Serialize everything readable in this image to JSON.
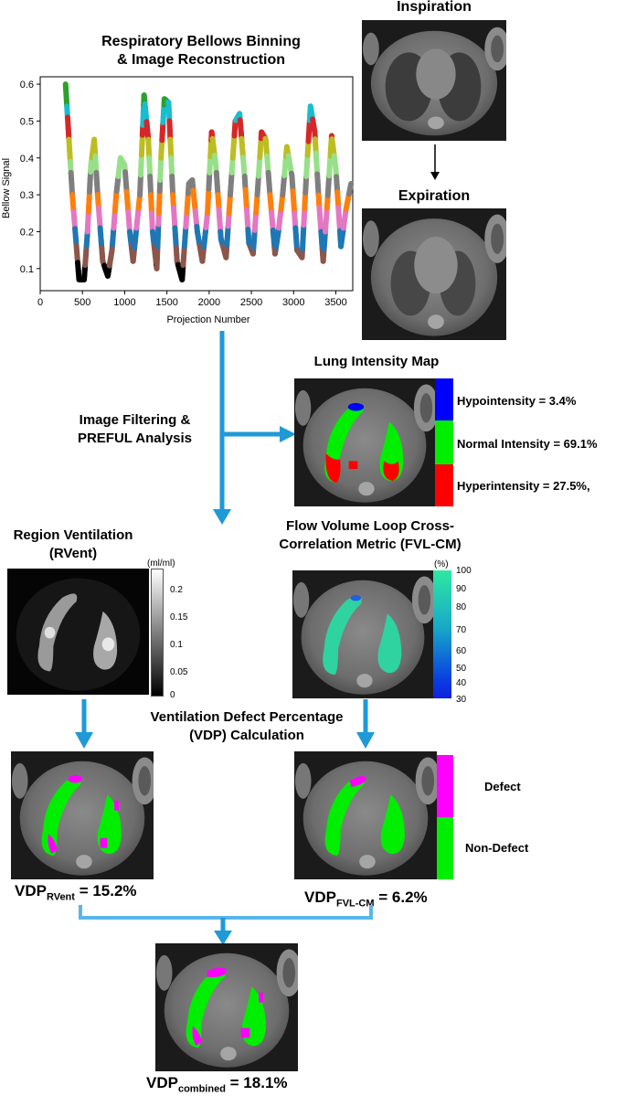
{
  "chart_panel": {
    "title_line1": "Respiratory Bellows Binning",
    "title_line2": "& Image Reconstruction",
    "chart_data": {
      "type": "line",
      "title": "Respiratory Bellows Binning & Image Reconstruction",
      "xlabel": "Projection Number",
      "ylabel": "Bellow Signal",
      "xlim": [
        0,
        3700
      ],
      "ylim": [
        0.04,
        0.62
      ],
      "xticks": [
        0,
        500,
        1000,
        1500,
        2000,
        2500,
        3000,
        3500
      ],
      "yticks": [
        0.1,
        0.2,
        0.3,
        0.4,
        0.5,
        0.6
      ],
      "bin_colors": [
        "#000000",
        "#8c564b",
        "#1f77b4",
        "#e377c2",
        "#ff7f0e",
        "#7f7f7f",
        "#98df8a",
        "#bcbd22",
        "#d62728",
        "#17becf",
        "#2ca02c"
      ],
      "x": [
        300,
        380,
        460,
        520,
        560,
        600,
        640,
        680,
        740,
        800,
        850,
        900,
        950,
        1000,
        1060,
        1100,
        1180,
        1230,
        1280,
        1330,
        1380,
        1430,
        1470,
        1520,
        1570,
        1620,
        1680,
        1720,
        1760,
        1800,
        1860,
        1920,
        1980,
        2030,
        2080,
        2140,
        2200,
        2250,
        2310,
        2360,
        2420,
        2470,
        2520,
        2570,
        2620,
        2670,
        2720,
        2780,
        2820,
        2870,
        2920,
        2980,
        3040,
        3100,
        3150,
        3200,
        3250,
        3300,
        3350,
        3400,
        3450,
        3500,
        3560,
        3620,
        3680
      ],
      "y": [
        0.6,
        0.3,
        0.07,
        0.07,
        0.2,
        0.38,
        0.45,
        0.3,
        0.12,
        0.08,
        0.15,
        0.3,
        0.4,
        0.38,
        0.2,
        0.12,
        0.3,
        0.57,
        0.45,
        0.2,
        0.1,
        0.4,
        0.56,
        0.55,
        0.3,
        0.12,
        0.07,
        0.2,
        0.33,
        0.34,
        0.2,
        0.12,
        0.25,
        0.47,
        0.38,
        0.18,
        0.13,
        0.3,
        0.5,
        0.52,
        0.35,
        0.17,
        0.14,
        0.3,
        0.47,
        0.45,
        0.3,
        0.14,
        0.2,
        0.3,
        0.43,
        0.35,
        0.15,
        0.13,
        0.35,
        0.54,
        0.47,
        0.28,
        0.12,
        0.28,
        0.46,
        0.37,
        0.16,
        0.26,
        0.33
      ]
    }
  },
  "inspiration": {
    "label": "Inspiration"
  },
  "expiration": {
    "label": "Expiration"
  },
  "lung_map": {
    "title": "Lung Intensity Map",
    "legend": [
      {
        "label": "Hypointensity = 3.4%",
        "color": "#0000ff"
      },
      {
        "label": "Normal Intensity = 69.1%",
        "color": "#00ee00"
      },
      {
        "label": "Hyperintensity = 27.5%,",
        "color": "#ff0000"
      }
    ]
  },
  "filtering": {
    "line1": "Image Filtering &",
    "line2": "PREFUL Analysis"
  },
  "rvent": {
    "title_line1": "Region Ventilation",
    "title_line2": "(RVent)",
    "unit": "(ml/ml)",
    "ticks": [
      "0.2",
      "0.15",
      "0.1",
      "0.05",
      "0"
    ]
  },
  "fvl": {
    "title_line1": "Flow Volume Loop Cross-",
    "title_line2": "Correlation Metric (FVL-CM)",
    "unit": "(%)",
    "ticks": [
      "100",
      "90",
      "80",
      "70",
      "60",
      "50",
      "40",
      "30"
    ]
  },
  "vdp_calc": {
    "line1": "Ventilation Defect Percentage",
    "line2": "(VDP) Calculation"
  },
  "defect_legend": {
    "defect": "Defect",
    "defect_color": "#ff00ff",
    "nondefect": "Non-Defect",
    "nondefect_color": "#00ee00"
  },
  "vdp_rvent": {
    "prefix": "VDP",
    "sub": "RVent",
    "value": "= 15.2%"
  },
  "vdp_fvl": {
    "prefix": "VDP",
    "sub": "FVL-CM",
    "value": "= 6.2%"
  },
  "vdp_combined": {
    "prefix": "VDP",
    "sub": "combined",
    "value": "= 18.1%"
  },
  "colors": {
    "arrow": "#1e9ad6",
    "lung_green": "#00ee00",
    "defect_magenta": "#ff00ff",
    "fvl_teal": "#2fd3a0"
  }
}
